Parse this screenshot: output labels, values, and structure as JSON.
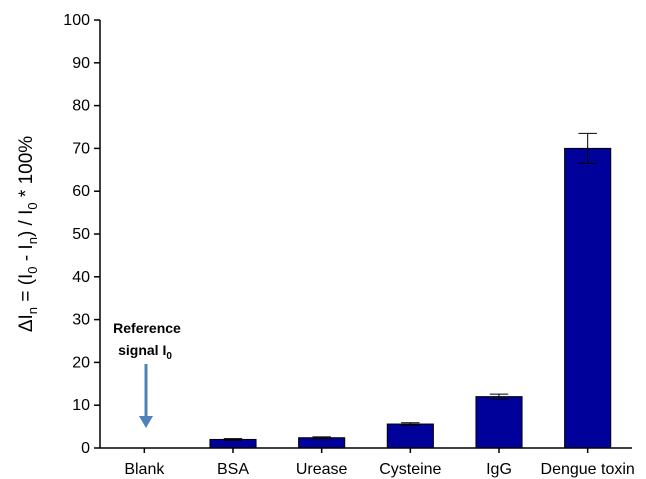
{
  "chart_data": {
    "type": "bar",
    "categories": [
      "Blank",
      "BSA",
      "Urease",
      "Cysteine",
      "IgG",
      "Dengue toxin"
    ],
    "values": [
      0,
      2.0,
      2.4,
      5.6,
      12.0,
      70.0
    ],
    "errors": [
      0,
      0.2,
      0.2,
      0.3,
      0.6,
      3.5
    ],
    "ylabel": {
      "delta": "ΔI",
      "n1": "n",
      "eq": " = (I",
      "zero1": "0",
      "minus": " - I",
      "n2": "n",
      "div": ") / I",
      "zero2": "0",
      "tail": " * 100%"
    },
    "ylim": [
      0,
      100
    ],
    "yticks": [
      "0",
      "10",
      "20",
      "30",
      "40",
      "50",
      "60",
      "70",
      "80",
      "90",
      "100"
    ],
    "bar_color": "#00009a",
    "annotation": {
      "line1": "Reference",
      "line2": "signal I",
      "sub": "0"
    },
    "arrow_color": "#4f81bd"
  }
}
